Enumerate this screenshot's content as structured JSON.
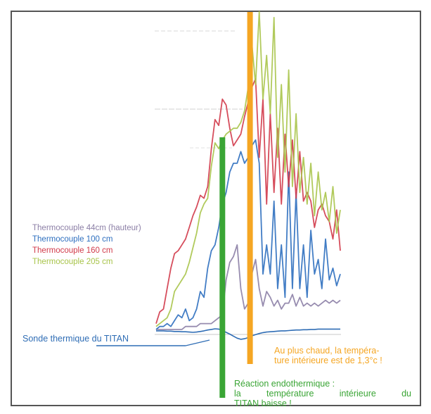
{
  "chart_data": {
    "type": "line",
    "title": "",
    "xlabel": "",
    "ylabel": "",
    "grid": false,
    "legend_position": "left",
    "x": [
      0,
      2,
      4,
      6,
      8,
      10,
      12,
      14,
      16,
      18,
      20,
      22,
      24,
      26,
      28,
      30,
      32,
      34,
      36,
      38,
      40,
      42,
      44,
      46,
      48,
      50,
      52,
      54,
      56,
      58,
      60,
      62,
      64,
      66,
      68,
      70,
      72,
      74,
      76,
      78,
      80,
      82,
      84,
      86,
      88,
      90,
      92,
      94,
      96,
      98,
      100
    ],
    "ylim": [
      0,
      100
    ],
    "series": [
      {
        "name": "Thermocouple 44cm (hauteur)",
        "color": "#8c7fa6",
        "values": [
          1,
          1,
          1,
          1,
          1,
          1,
          1,
          1,
          2,
          2,
          2,
          2,
          3,
          3,
          3,
          3,
          4,
          5,
          6,
          18,
          24,
          26,
          30,
          15,
          8,
          10,
          20,
          25,
          15,
          9,
          14,
          12,
          9,
          11,
          8,
          10,
          10,
          13,
          9,
          12,
          9,
          10,
          9,
          10,
          9,
          10,
          11,
          10,
          11,
          10,
          11
        ]
      },
      {
        "name": "Thermocouple 100 cm",
        "color": "#2e6fbf",
        "values": [
          1,
          2,
          2,
          3,
          2,
          4,
          6,
          5,
          8,
          4,
          5,
          8,
          14,
          12,
          22,
          28,
          30,
          36,
          44,
          48,
          55,
          58,
          58,
          62,
          58,
          60,
          64,
          66,
          58,
          20,
          30,
          20,
          45,
          15,
          30,
          12,
          55,
          15,
          48,
          15,
          30,
          12,
          35,
          20,
          25,
          15,
          32,
          18,
          22,
          16,
          20
        ]
      },
      {
        "name": "Thermocouple 160 cm",
        "color": "#d13a4a",
        "values": [
          3,
          7,
          8,
          15,
          22,
          27,
          28,
          30,
          32,
          36,
          40,
          43,
          47,
          46,
          50,
          63,
          73,
          71,
          80,
          78,
          70,
          64,
          66,
          68,
          74,
          79,
          84,
          87,
          60,
          80,
          44,
          75,
          48,
          70,
          44,
          68,
          50,
          66,
          46,
          62,
          45,
          48,
          45,
          36,
          42,
          44,
          40,
          38,
          32,
          42,
          28
        ]
      },
      {
        "name": "Thermocouple 205 cm",
        "color": "#a8c44a",
        "values": [
          2,
          3,
          4,
          5,
          8,
          14,
          16,
          18,
          20,
          24,
          29,
          34,
          41,
          44,
          46,
          57,
          65,
          63,
          66,
          68,
          69,
          70,
          70,
          72,
          76,
          84,
          99,
          85,
          110,
          80,
          95,
          75,
          108,
          60,
          85,
          55,
          90,
          50,
          75,
          48,
          60,
          44,
          58,
          40,
          55,
          42,
          48,
          38,
          50,
          34,
          42
        ]
      },
      {
        "name": "Sonde thermique du TITAN",
        "color": "#2f6db5",
        "values": [
          0.5,
          0.5,
          0.5,
          0.4,
          0.4,
          0.3,
          0.3,
          0.2,
          0.2,
          0.1,
          0.0,
          0.1,
          0.3,
          0.5,
          0.8,
          1.0,
          1.2,
          1.1,
          0.6,
          0.0,
          -0.6,
          -1.3,
          -2.0,
          -2.4,
          -2.2,
          -1.8,
          -1.2,
          -0.8,
          -0.4,
          -0.1,
          0.1,
          0.2,
          0.3,
          0.4,
          0.5,
          0.5,
          0.6,
          0.7,
          0.8,
          0.8,
          0.9,
          0.9,
          1.0,
          1.0,
          1.1,
          1.1,
          1.1,
          1.1,
          1.1,
          1.1,
          1.1
        ]
      }
    ],
    "markers": [
      {
        "name": "reaction-endothermique",
        "x": 36,
        "color": "#3aa535"
      },
      {
        "name": "plus-chaud",
        "x": 51,
        "color": "#f5a623"
      }
    ]
  },
  "legend": [
    {
      "label": "Thermocouple 44cm (hauteur)",
      "color": "#8c7fa6"
    },
    {
      "label": "Thermocouple 100 cm",
      "color": "#2e6fbf"
    },
    {
      "label": "Thermocouple 160 cm",
      "color": "#d13a4a"
    },
    {
      "label": "Thermocouple 205 cm",
      "color": "#a8c44a"
    }
  ],
  "annotations": {
    "sonde": {
      "text": "Sonde thermique du TITAN",
      "color": "#2f6db5"
    },
    "chaud": {
      "line1": "Au plus chaud, la tempéra-",
      "line2": "ture intérieure est de 1,3°c !",
      "color": "#f5a623"
    },
    "endo": {
      "line1": "Réaction endothermique :",
      "line2": "la température intérieure du",
      "line3": "TITAN baisse !",
      "color": "#3aa535"
    }
  }
}
